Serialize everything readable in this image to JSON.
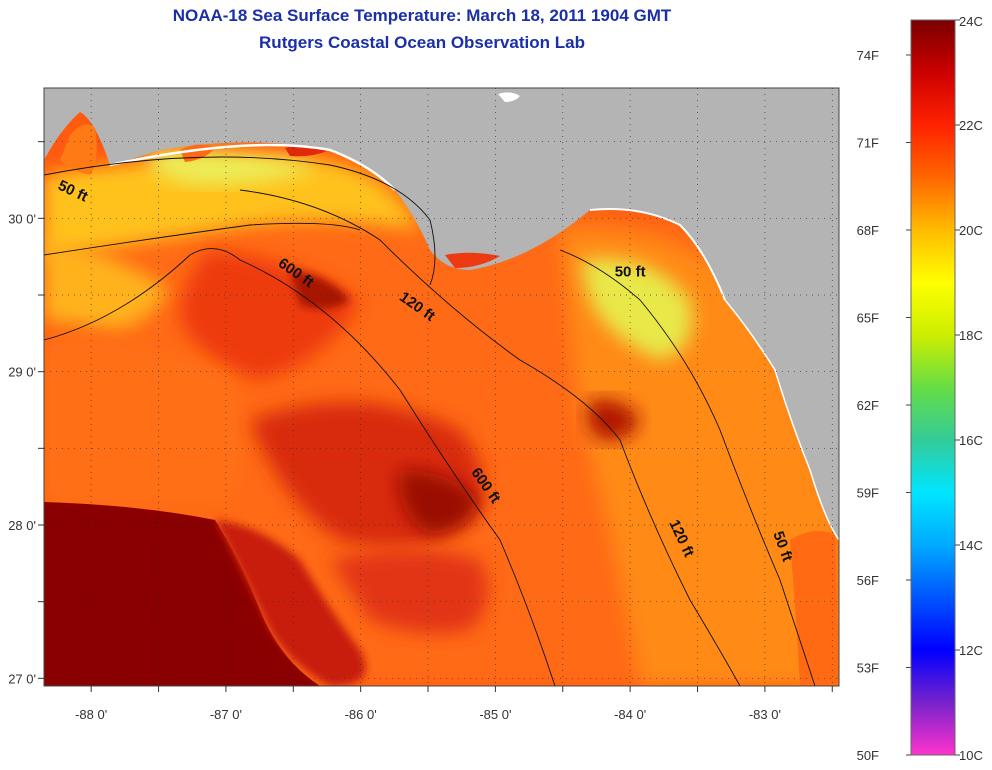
{
  "header": {
    "title": "NOAA-18 Sea Surface Temperature:  March 18, 2011 1904 GMT",
    "subtitle": "Rutgers Coastal Ocean Observation Lab"
  },
  "map": {
    "lon_range": [
      -88.35,
      -82.45
    ],
    "lat_range": [
      26.95,
      30.85
    ],
    "lon_ticks": [
      {
        "value": -88,
        "label": "-88 0'"
      },
      {
        "value": -87,
        "label": "-87 0'"
      },
      {
        "value": -86,
        "label": "-86 0'"
      },
      {
        "value": -85,
        "label": "-85 0'"
      },
      {
        "value": -84,
        "label": "-84 0'"
      },
      {
        "value": -83,
        "label": "-83 0'"
      }
    ],
    "lat_ticks": [
      {
        "value": 30,
        "label": "30 0'"
      },
      {
        "value": 29,
        "label": "29 0'"
      },
      {
        "value": 28,
        "label": "28 0'"
      },
      {
        "value": 27,
        "label": "27 0'"
      }
    ],
    "land_color": "#b4b4b4",
    "isobaths": [
      {
        "label": "50 ft",
        "lon": -88.15,
        "lat": 30.15
      },
      {
        "label": "600 ft",
        "lon": -86.5,
        "lat": 29.62
      },
      {
        "label": "120 ft",
        "lon": -85.6,
        "lat": 29.4
      },
      {
        "label": "50 ft",
        "lon": -84.0,
        "lat": 29.62
      },
      {
        "label": "600 ft",
        "lon": -85.1,
        "lat": 28.24
      },
      {
        "label": "120 ft",
        "lon": -83.65,
        "lat": 27.9
      },
      {
        "label": "50 ft",
        "lon": -82.9,
        "lat": 27.85
      }
    ]
  },
  "colorbar": {
    "stops": [
      "#ff33cc",
      "#7722cc",
      "#0000ff",
      "#0055ff",
      "#00aaff",
      "#00e5ff",
      "#33cc99",
      "#66dd44",
      "#ccee00",
      "#ffff00",
      "#ffbb00",
      "#ff6600",
      "#ff2200",
      "#cc0000",
      "#7a0000"
    ],
    "celsius_labels": [
      {
        "value": 24,
        "label": "24C"
      },
      {
        "value": 22,
        "label": "22C"
      },
      {
        "value": 20,
        "label": "20C"
      },
      {
        "value": 18,
        "label": "18C"
      },
      {
        "value": 16,
        "label": "16C"
      },
      {
        "value": 14,
        "label": "14C"
      },
      {
        "value": 12,
        "label": "12C"
      },
      {
        "value": 10,
        "label": "10C"
      }
    ],
    "fahrenheit_labels": [
      {
        "value": 74,
        "label": "74F"
      },
      {
        "value": 71,
        "label": "71F"
      },
      {
        "value": 68,
        "label": "68F"
      },
      {
        "value": 65,
        "label": "65F"
      },
      {
        "value": 62,
        "label": "62F"
      },
      {
        "value": 59,
        "label": "59F"
      },
      {
        "value": 56,
        "label": "56F"
      },
      {
        "value": 53,
        "label": "53F"
      },
      {
        "value": 50,
        "label": "50F"
      }
    ]
  }
}
